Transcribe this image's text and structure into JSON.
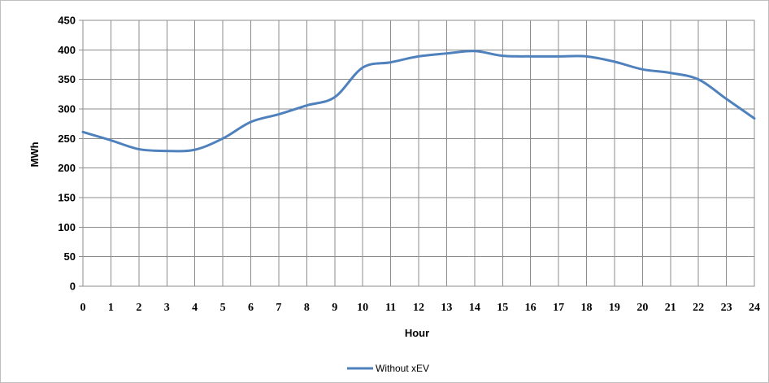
{
  "chart_data": {
    "type": "line",
    "title": "",
    "xlabel": "Hour",
    "ylabel": "MWh",
    "xlim": [
      0,
      24
    ],
    "ylim": [
      0,
      450
    ],
    "x_ticks": [
      0,
      1,
      2,
      3,
      4,
      5,
      6,
      7,
      8,
      9,
      10,
      11,
      12,
      13,
      14,
      15,
      16,
      17,
      18,
      19,
      20,
      21,
      22,
      23,
      24
    ],
    "y_ticks": [
      0,
      50,
      100,
      150,
      200,
      250,
      300,
      350,
      400,
      450
    ],
    "grid": true,
    "legend_position": "bottom",
    "series": [
      {
        "name": "Without xEV",
        "color": "#4F81BD",
        "x": [
          0,
          1,
          2,
          3,
          4,
          5,
          6,
          7,
          8,
          9,
          10,
          11,
          12,
          13,
          14,
          15,
          16,
          17,
          18,
          19,
          20,
          21,
          22,
          23,
          24
        ],
        "values": [
          261,
          247,
          232,
          229,
          231,
          250,
          278,
          291,
          306,
          320,
          370,
          379,
          389,
          394,
          398,
          390,
          389,
          389,
          389,
          380,
          367,
          361,
          350,
          317,
          284
        ]
      }
    ]
  }
}
